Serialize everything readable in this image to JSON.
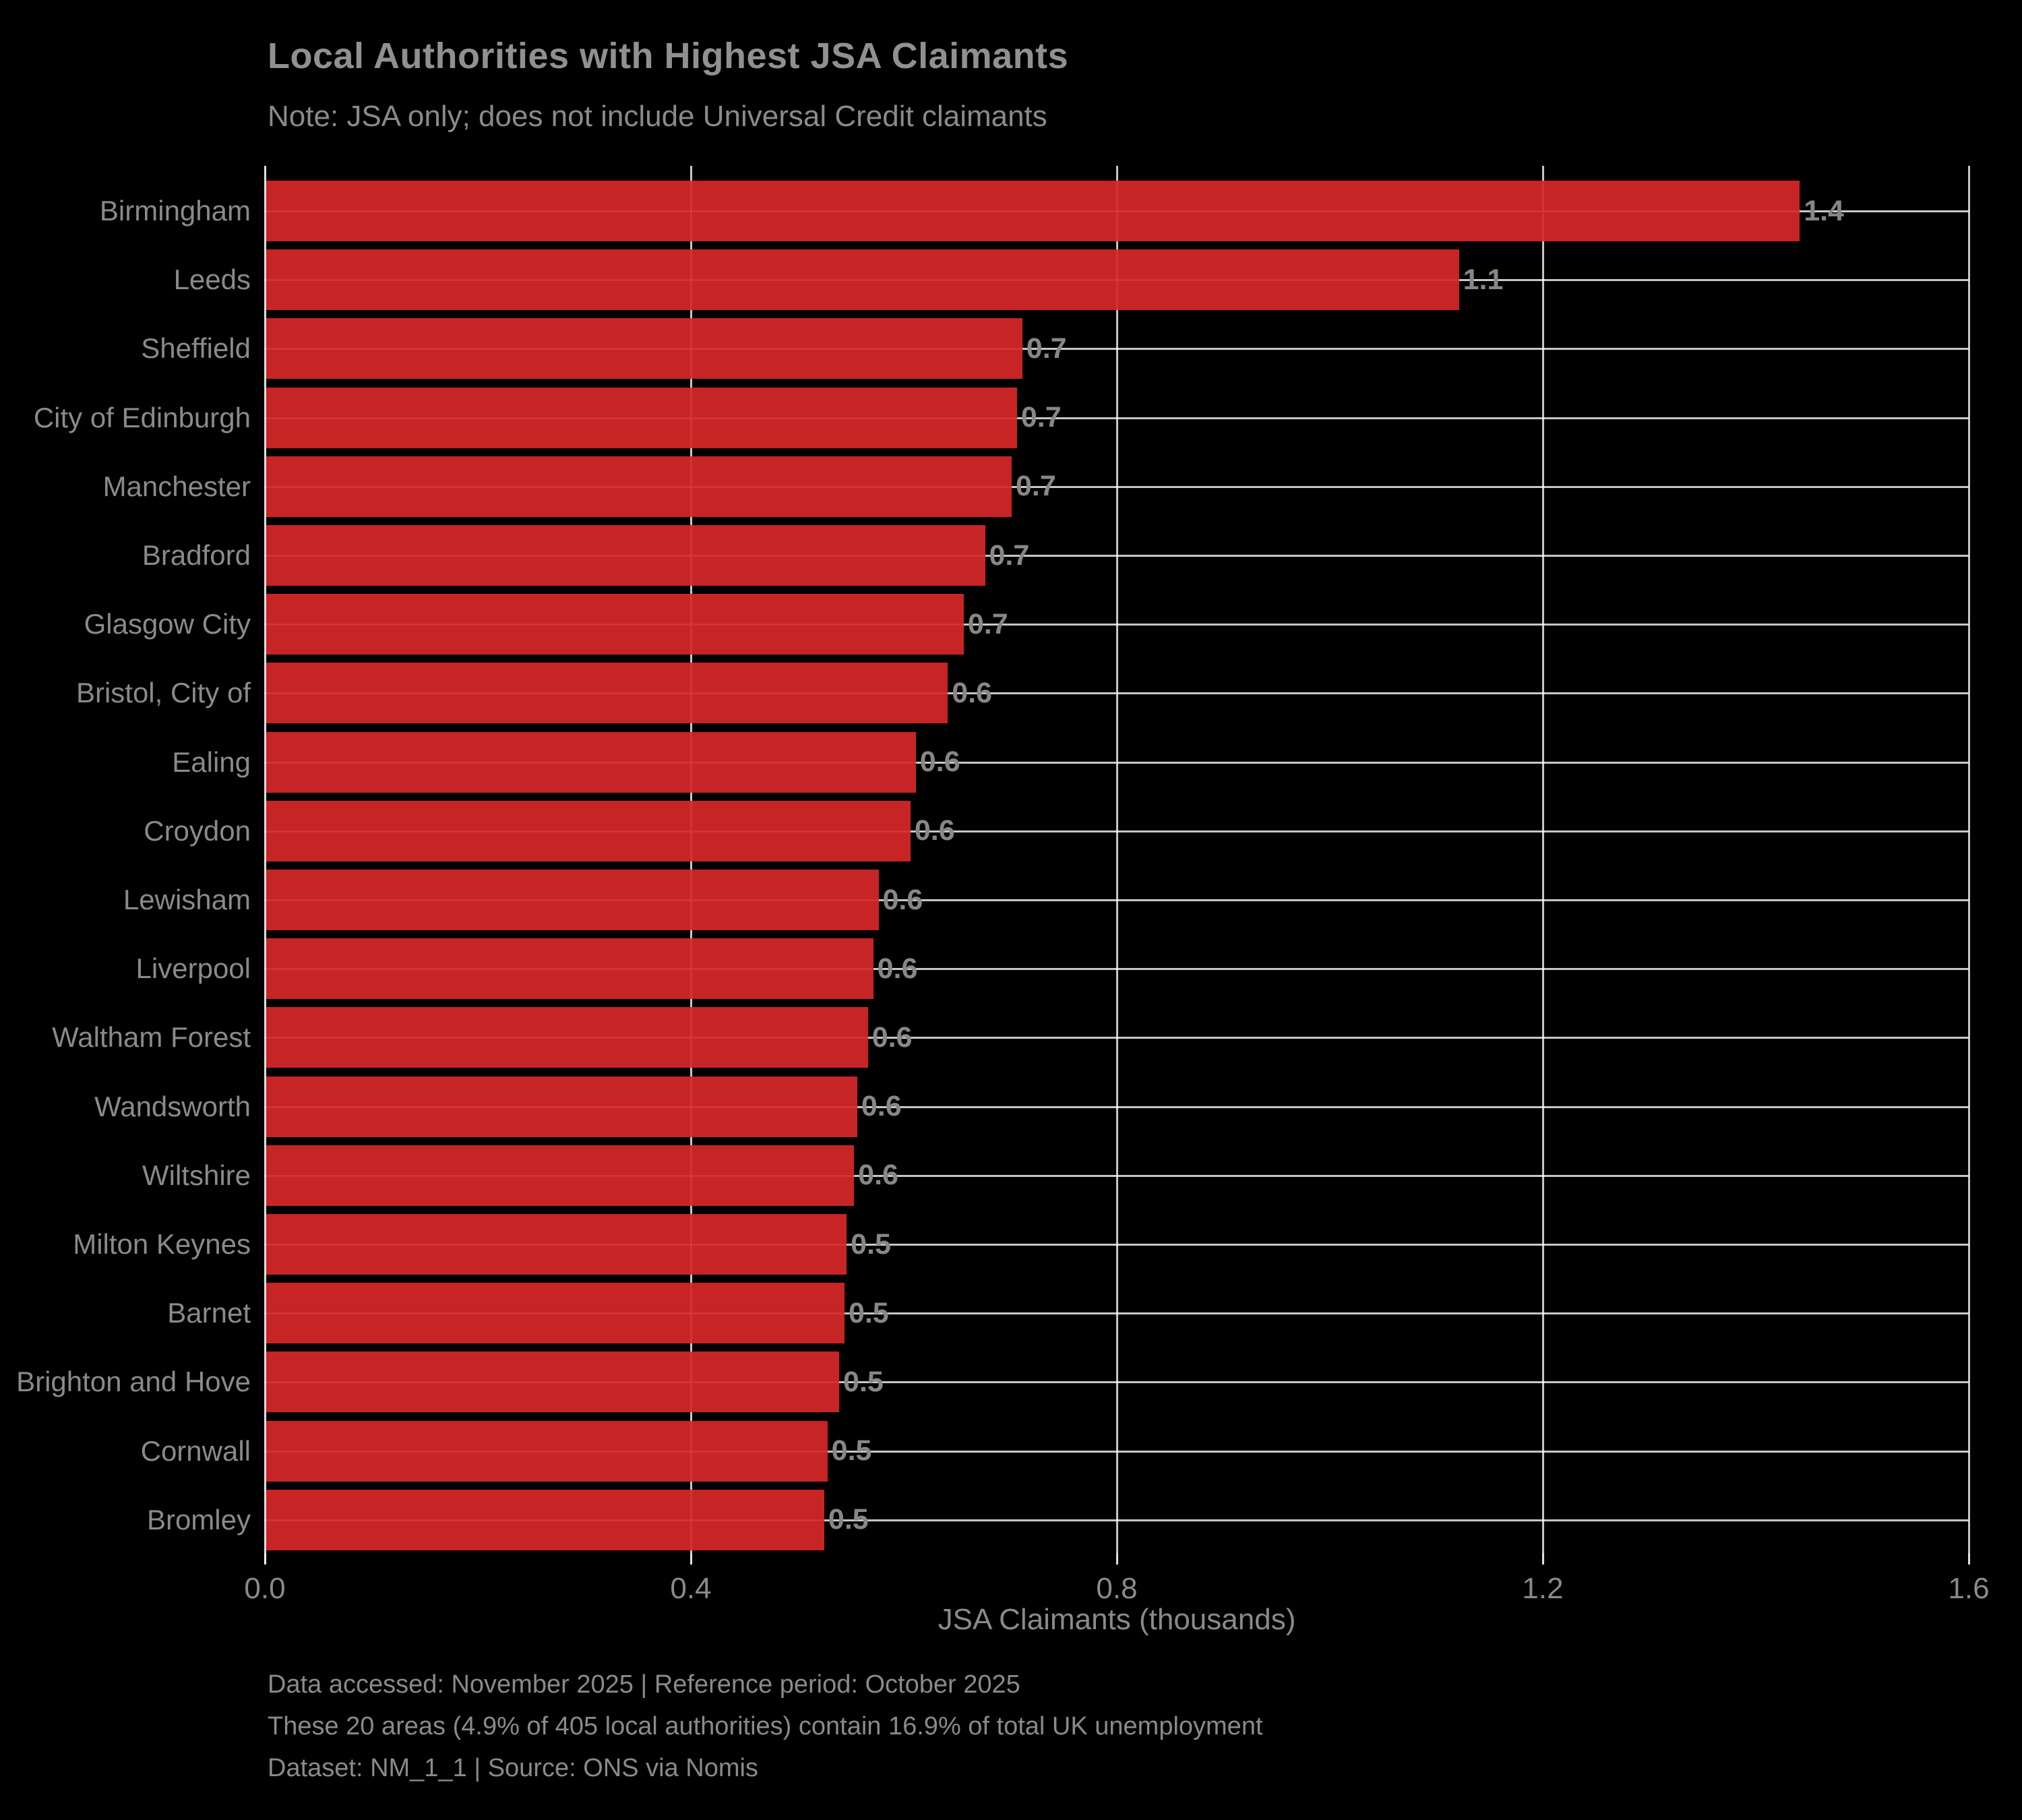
{
  "title": "Local Authorities with Highest JSA Claimants",
  "subtitle": "Note: JSA only; does not include Universal Credit claimants",
  "colors": {
    "background": "#000000",
    "bar": "#d62728",
    "grid": "#ffffff",
    "text": "#8a8a8a"
  },
  "chart_data": {
    "type": "bar",
    "orientation": "horizontal",
    "title": "Local Authorities with Highest JSA Claimants",
    "subtitle": "Note: JSA only; does not include Universal Credit claimants",
    "xlabel": "JSA Claimants (thousands)",
    "ylabel": "",
    "xlim": [
      0,
      1.6
    ],
    "x_ticks": [
      0.0,
      0.4,
      0.8,
      1.2,
      1.6
    ],
    "x_tick_labels": [
      "0.0",
      "0.4",
      "0.8",
      "1.2",
      "1.6"
    ],
    "grid": true,
    "legend": false,
    "categories": [
      "Birmingham",
      "Leeds",
      "Sheffield",
      "City of Edinburgh",
      "Manchester",
      "Bradford",
      "Glasgow City",
      "Bristol, City of",
      "Ealing",
      "Croydon",
      "Lewisham",
      "Liverpool",
      "Waltham Forest",
      "Wandsworth",
      "Wiltshire",
      "Milton Keynes",
      "Barnet",
      "Brighton and Hove",
      "Cornwall",
      "Bromley"
    ],
    "values": [
      1.44,
      1.12,
      0.71,
      0.705,
      0.7,
      0.675,
      0.655,
      0.64,
      0.61,
      0.605,
      0.575,
      0.57,
      0.565,
      0.555,
      0.552,
      0.545,
      0.543,
      0.538,
      0.527,
      0.524
    ],
    "bar_labels": [
      "1.4",
      "1.1",
      "0.7",
      "0.7",
      "0.7",
      "0.7",
      "0.7",
      "0.6",
      "0.6",
      "0.6",
      "0.6",
      "0.6",
      "0.6",
      "0.6",
      "0.6",
      "0.5",
      "0.5",
      "0.5",
      "0.5",
      "0.5"
    ]
  },
  "footer": {
    "line1": "Data accessed: November 2025 | Reference period: October 2025",
    "line2": "These 20 areas (4.9% of 405 local authorities) contain 16.9% of total UK unemployment",
    "line3": "Dataset: NM_1_1 | Source: ONS via Nomis"
  }
}
